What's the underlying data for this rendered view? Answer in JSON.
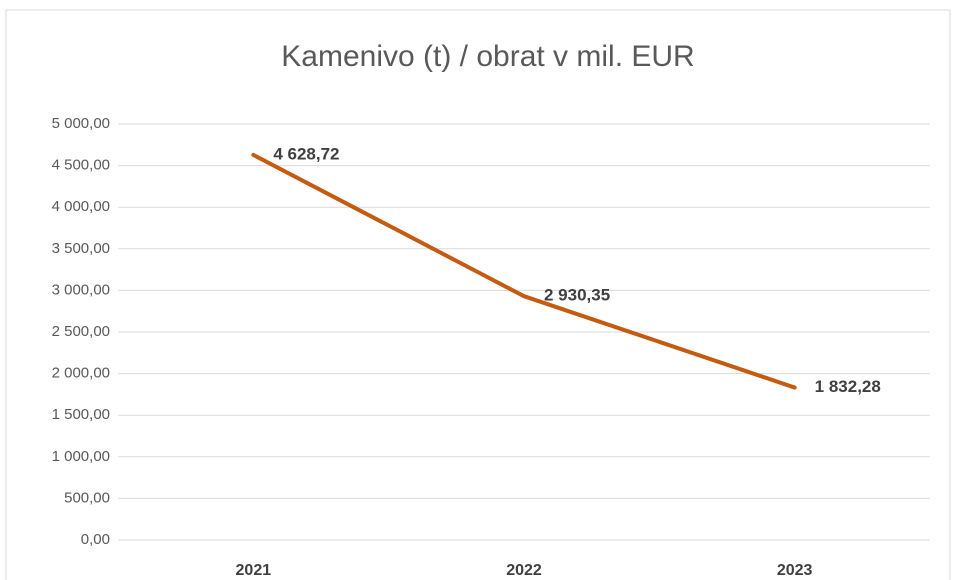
{
  "chart_data": {
    "type": "line",
    "title": "Kamenivo (t) / obrat v mil. EUR",
    "categories": [
      "2021",
      "2022",
      "2023"
    ],
    "series": [
      {
        "name": "Kamenivo (t) / obrat v mil. EUR",
        "color": "#c55a11",
        "values": [
          4628.72,
          2930.35,
          1832.28
        ],
        "value_labels": [
          "4 628,72",
          "2 930,35",
          "1 832,28"
        ]
      }
    ],
    "ylim": [
      0,
      5000
    ],
    "yticks": [
      {
        "value": 0,
        "label": "0,00"
      },
      {
        "value": 500,
        "label": "500,00"
      },
      {
        "value": 1000,
        "label": "1 000,00"
      },
      {
        "value": 1500,
        "label": "1 500,00"
      },
      {
        "value": 2000,
        "label": "2 000,00"
      },
      {
        "value": 2500,
        "label": "2 500,00"
      },
      {
        "value": 3000,
        "label": "3 000,00"
      },
      {
        "value": 3500,
        "label": "3 500,00"
      },
      {
        "value": 4000,
        "label": "4 000,00"
      },
      {
        "value": 4500,
        "label": "4 500,00"
      },
      {
        "value": 5000,
        "label": "5 000,00"
      }
    ],
    "grid": true
  }
}
